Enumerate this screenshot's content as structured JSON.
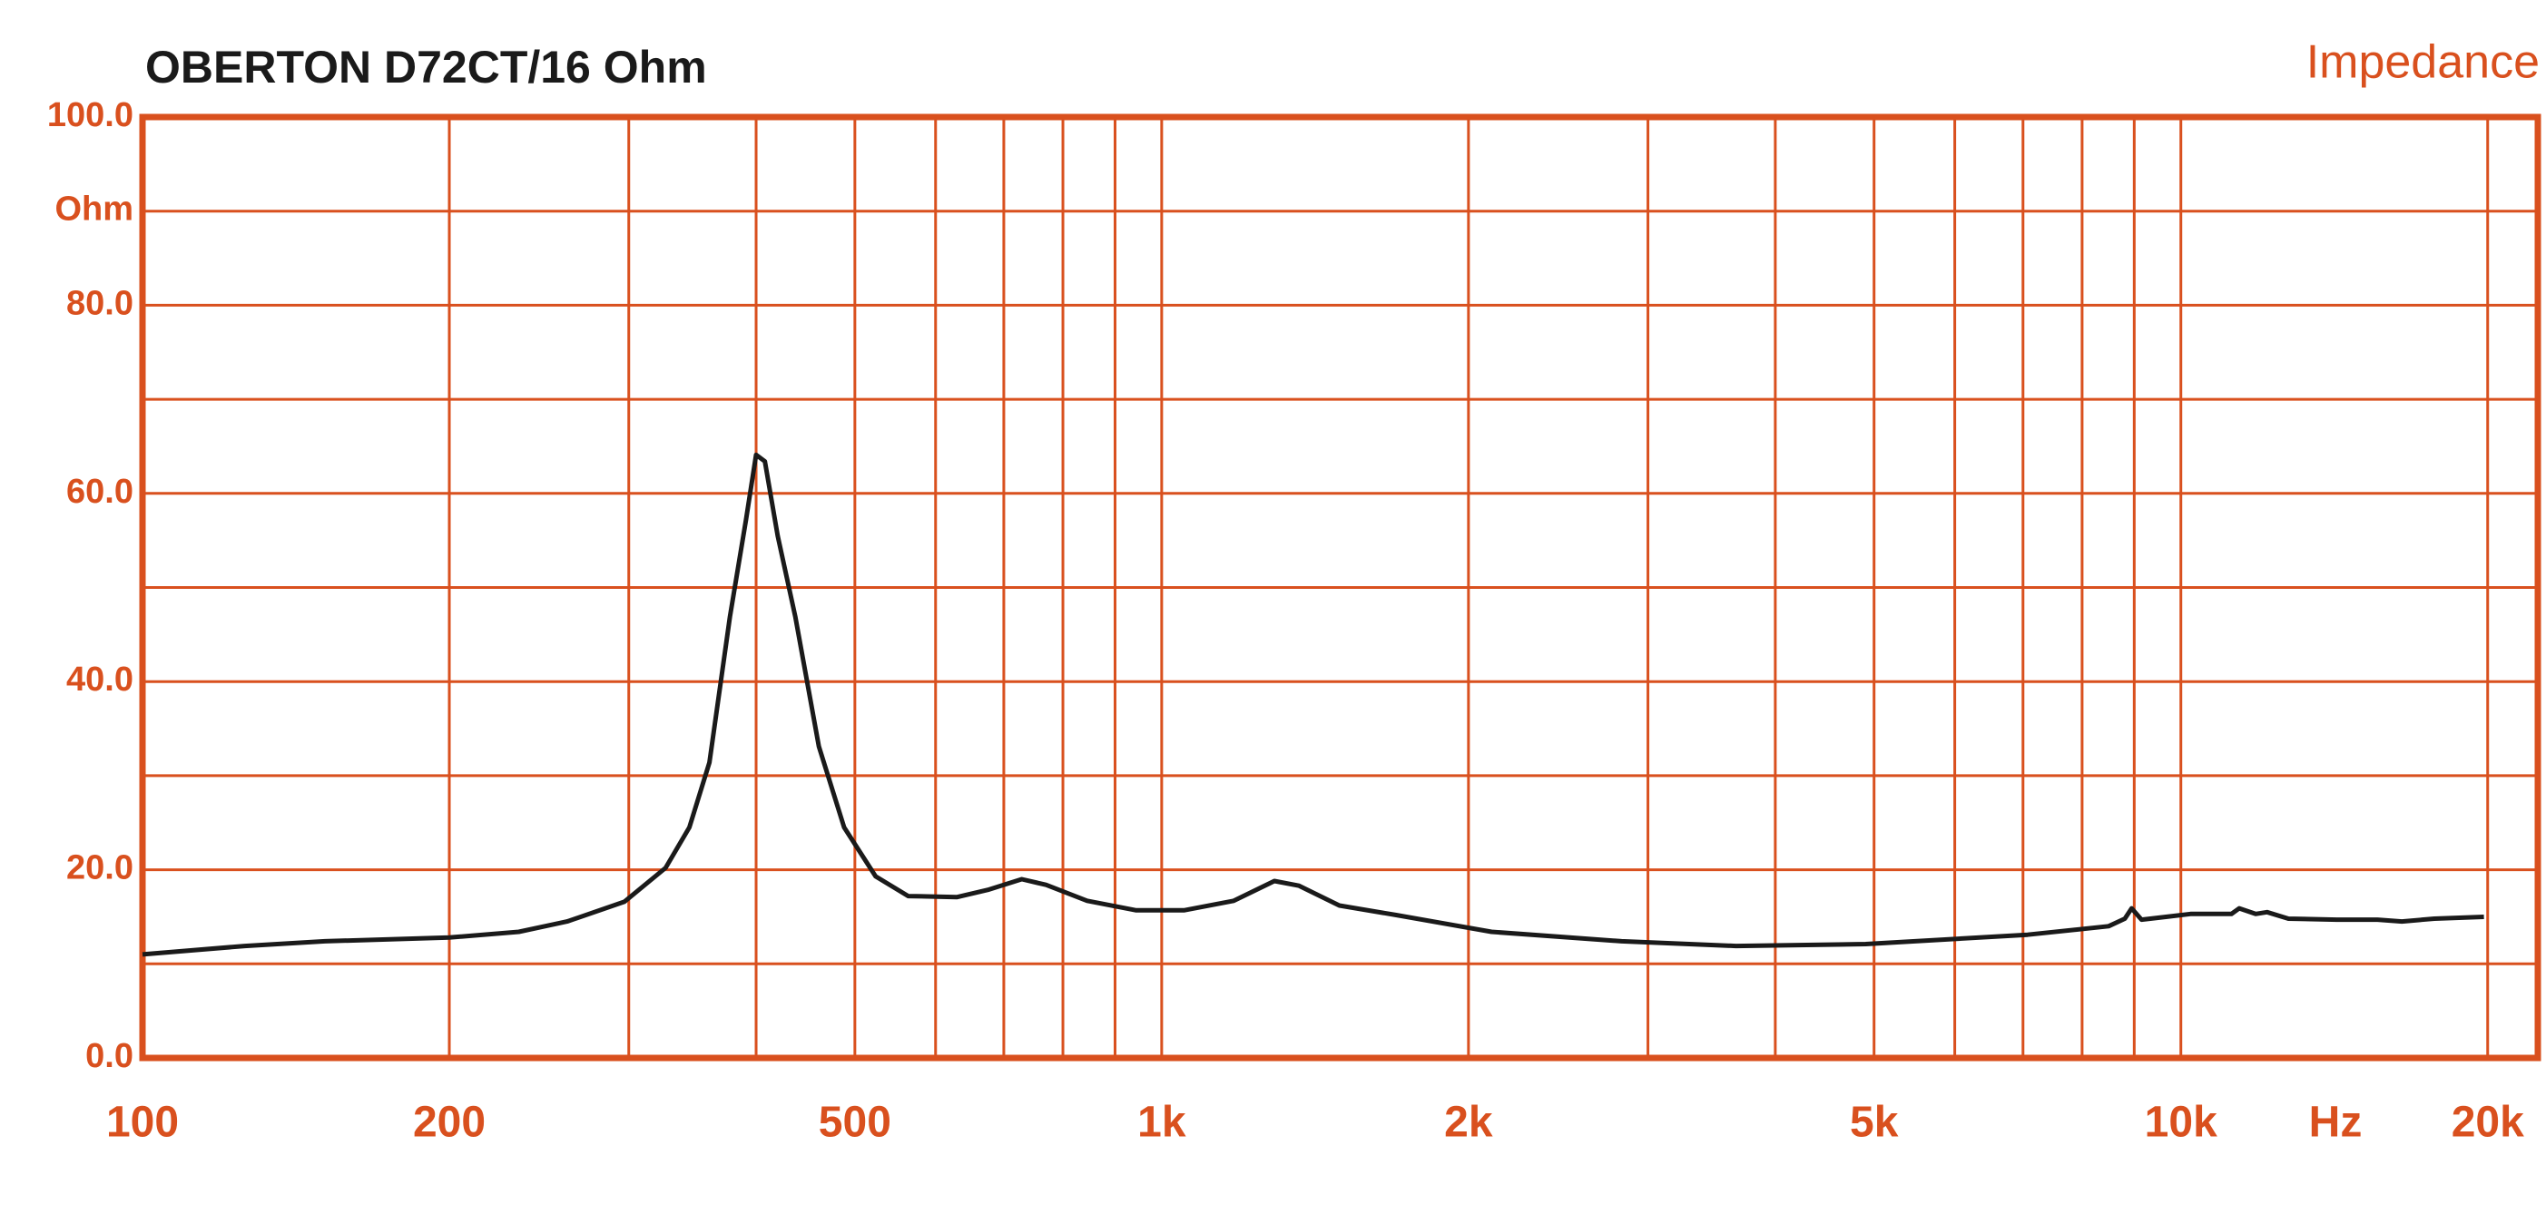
{
  "chart_data": {
    "type": "line",
    "title": "OBERTON  D72CT/16 Ohm",
    "x_label": "Hz",
    "xscale": "log",
    "grid": true,
    "axis_color": "#d9501e",
    "xlim": [
      100,
      22400
    ],
    "xticks": [
      100,
      200,
      {
        "value": 300,
        "label": null
      },
      {
        "value": 400,
        "label": null
      },
      500,
      {
        "value": 600,
        "label": null
      },
      {
        "value": 700,
        "label": null
      },
      {
        "value": 800,
        "label": null
      },
      {
        "value": 900,
        "label": null
      },
      {
        "value": 1000,
        "label": "1k"
      },
      {
        "value": 2000,
        "label": "2k"
      },
      {
        "value": 3000,
        "label": null
      },
      {
        "value": 4000,
        "label": null
      },
      {
        "value": 5000,
        "label": "5k"
      },
      {
        "value": 6000,
        "label": null
      },
      {
        "value": 7000,
        "label": null
      },
      {
        "value": 8000,
        "label": null
      },
      {
        "value": 9000,
        "label": null
      },
      {
        "value": 10000,
        "label": "10k"
      },
      {
        "value": 20000,
        "label": "20k"
      }
    ],
    "ylim": [
      0,
      100
    ],
    "yticks": [
      {
        "value": 0,
        "label": "0.0"
      },
      {
        "value": 10,
        "label": null
      },
      {
        "value": 20,
        "label": "20.0"
      },
      {
        "value": 30,
        "label": null
      },
      {
        "value": 40,
        "label": "40.0"
      },
      {
        "value": 50,
        "label": null
      },
      {
        "value": 60,
        "label": "60.0"
      },
      {
        "value": 70,
        "label": null
      },
      {
        "value": 80,
        "label": "80.0"
      },
      {
        "value": 90,
        "label": "Ohm"
      },
      {
        "value": 100,
        "label": "100.0"
      }
    ],
    "x": [
      100,
      126,
      151,
      200,
      234,
      261,
      297,
      326,
      344,
      360,
      377,
      391,
      400,
      408,
      420,
      437,
      461,
      488,
      524,
      564,
      630,
      677,
      729,
      770,
      845,
      943,
      1053,
      1177,
      1290,
      1364,
      1494,
      1696,
      2107,
      2826,
      3660,
      4906,
      7072,
      8494,
      8812,
      8947,
      9150,
      9668,
      10220,
      11210,
      11410,
      11840,
      12150,
      12750,
      14230,
      15590,
      16480,
      17730,
      19830
    ],
    "series": [
      {
        "name": "Impedance",
        "color": "#1a1a1a",
        "values": [
          11.0,
          11.9,
          12.4,
          12.8,
          13.4,
          14.5,
          16.6,
          20.2,
          24.5,
          31.4,
          46.9,
          57.2,
          64.1,
          63.4,
          55.5,
          46.9,
          33.1,
          24.5,
          19.3,
          17.2,
          17.1,
          17.9,
          19.0,
          18.4,
          16.7,
          15.7,
          15.7,
          16.7,
          18.8,
          18.3,
          16.2,
          15.2,
          13.4,
          12.4,
          11.9,
          12.1,
          13.1,
          14.0,
          14.8,
          15.9,
          14.7,
          15.0,
          15.3,
          15.3,
          15.9,
          15.3,
          15.5,
          14.8,
          14.7,
          14.7,
          14.5,
          14.8,
          15.0
        ]
      }
    ]
  }
}
